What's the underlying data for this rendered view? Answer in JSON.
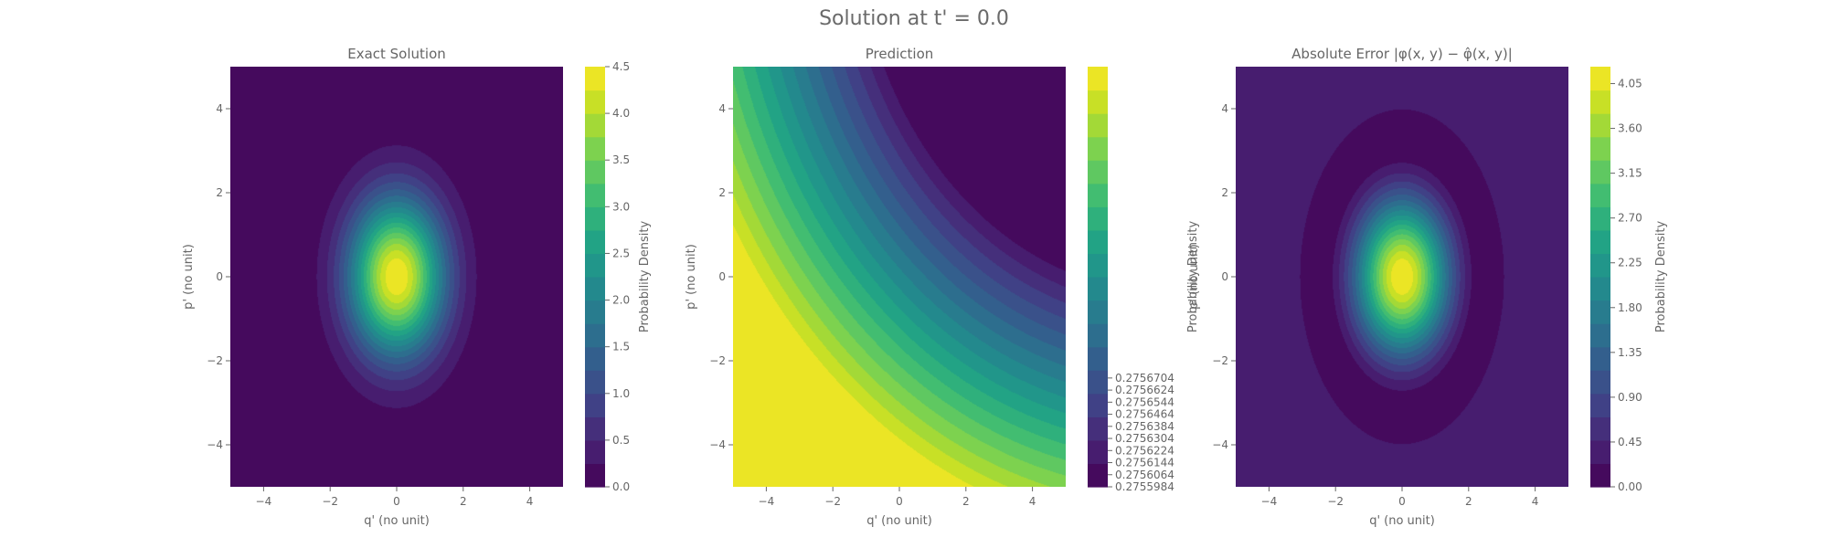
{
  "figure": {
    "suptitle": "Solution at t' = 0.0"
  },
  "chart_data": [
    {
      "type": "heatmap",
      "panel": "exact",
      "title": "Exact Solution",
      "xlabel": "q' (no unit)",
      "ylabel": "p' (no unit)",
      "xlim": [
        -5,
        5
      ],
      "ylim": [
        -5,
        5
      ],
      "xticks": [
        -4,
        -2,
        0,
        2,
        4
      ],
      "yticks": [
        -4,
        -2,
        0,
        2,
        4
      ],
      "xtick_labels": [
        "−4",
        "−2",
        "0",
        "2",
        "4"
      ],
      "ytick_labels": [
        "−4",
        "−2",
        "0",
        "2",
        "4"
      ],
      "colormap": "viridis",
      "field": {
        "kind": "gaussian",
        "center": [
          0,
          0
        ],
        "sigma_q": 1.0,
        "sigma_p": 1.3,
        "peak": 4.5
      },
      "colorbar": {
        "label": "Probability Density",
        "range": [
          0.0,
          4.5
        ],
        "ticks": [
          0.0,
          0.5,
          1.0,
          1.5,
          2.0,
          2.5,
          3.0,
          3.5,
          4.0,
          4.5
        ],
        "tick_labels": [
          "0.0",
          "0.5",
          "1.0",
          "1.5",
          "2.0",
          "2.5",
          "3.0",
          "3.5",
          "4.0",
          "4.5"
        ]
      }
    },
    {
      "type": "heatmap",
      "panel": "prediction",
      "title": "Prediction",
      "xlabel": "q' (no unit)",
      "ylabel": "p' (no unit)",
      "xlim": [
        -5,
        5
      ],
      "ylim": [
        -5,
        5
      ],
      "xticks": [
        -4,
        -2,
        0,
        2,
        4
      ],
      "yticks": [
        -4,
        -2,
        0,
        2,
        4
      ],
      "xtick_labels": [
        "−4",
        "−2",
        "0",
        "2",
        "4"
      ],
      "ytick_labels": [
        "−4",
        "−2",
        "0",
        "2",
        "4"
      ],
      "colormap": "viridis",
      "field": {
        "kind": "radial_from_corner",
        "origin": [
          8,
          9
        ],
        "near": 9.0,
        "far": 15.5
      },
      "colorbar": {
        "label": "Probability Density",
        "range": [
          0.2755984,
          0.2758764
        ],
        "ticks": [
          0.2755984,
          0.2756064,
          0.2756144,
          0.2756224,
          0.2756304,
          0.2756384,
          0.2756464,
          0.2756544,
          0.2756624,
          0.2756704
        ],
        "tick_labels": [
          "0.2755984",
          "0.2756064",
          "0.2756144",
          "0.2756224",
          "0.2756304",
          "0.2756384",
          "0.2756464",
          "0.2756544",
          "0.2756624",
          "0.2756704"
        ]
      }
    },
    {
      "type": "heatmap",
      "panel": "error",
      "title": "Absolute Error |φ(x, y) − φ̂(x, y)|",
      "xlabel": "q' (no unit)",
      "ylabel": "p' (no unit)",
      "xlim": [
        -5,
        5
      ],
      "ylim": [
        -5,
        5
      ],
      "xticks": [
        -4,
        -2,
        0,
        2,
        4
      ],
      "yticks": [
        -4,
        -2,
        0,
        2,
        4
      ],
      "xtick_labels": [
        "−4",
        "−2",
        "0",
        "2",
        "4"
      ],
      "ytick_labels": [
        "−4",
        "−2",
        "0",
        "2",
        "4"
      ],
      "colormap": "viridis",
      "field": {
        "kind": "abs_gaussian_minus_const",
        "center": [
          0,
          0
        ],
        "sigma_q": 1.0,
        "sigma_p": 1.3,
        "peak": 4.5,
        "offset": 0.2757
      },
      "colorbar": {
        "label": "Probability Density",
        "range": [
          0.0,
          4.22
        ],
        "ticks": [
          0.0,
          0.45,
          0.9,
          1.35,
          1.8,
          2.25,
          2.7,
          3.15,
          3.6,
          4.05
        ],
        "tick_labels": [
          "0.00",
          "0.45",
          "0.90",
          "1.35",
          "1.80",
          "2.25",
          "2.70",
          "3.15",
          "3.60",
          "4.05"
        ]
      }
    }
  ]
}
